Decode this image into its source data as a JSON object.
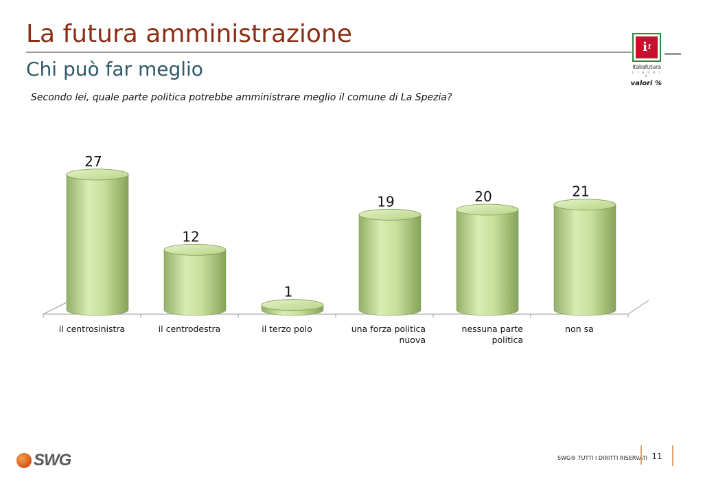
{
  "slide": {
    "title": "La futura amministrazione",
    "subtitle": "Chi può far meglio",
    "question": "Secondo lei, quale parte politica potrebbe amministrare meglio il comune di La Spezia?",
    "unit_note": "valori %"
  },
  "logo": {
    "mark": "i",
    "mark_sup": "f",
    "name": "italiafutura",
    "sub": "L I G U R I A"
  },
  "footer": {
    "brand": "SWG",
    "copyright": "SWG® TUTTI I DIRITTI RISERVATI",
    "page_number": "11"
  },
  "colors": {
    "title": "#8b2e14",
    "subtitle": "#2f5a68",
    "bar_light": "#d8ebb0",
    "bar_dark": "#8fae62",
    "accent": "#e0a070"
  },
  "chart_data": {
    "type": "bar",
    "categories": [
      "il centrosinistra",
      "il centrodestra",
      "il terzo polo",
      "una forza politica nuova",
      "nessuna parte politica",
      "non sa"
    ],
    "category_lines": [
      [
        "il centrosinistra"
      ],
      [
        "il centrodestra"
      ],
      [
        "il terzo polo"
      ],
      [
        "una forza politica",
        "nuova"
      ],
      [
        "nessuna parte",
        "politica"
      ],
      [
        "non sa"
      ]
    ],
    "values": [
      27,
      12,
      1,
      19,
      20,
      21
    ],
    "data_labels": [
      "27",
      "12",
      "1",
      "19",
      "20",
      "21"
    ],
    "ylim": [
      0,
      30
    ],
    "grid": false,
    "legend": "none",
    "style": "3d-cylinder"
  }
}
